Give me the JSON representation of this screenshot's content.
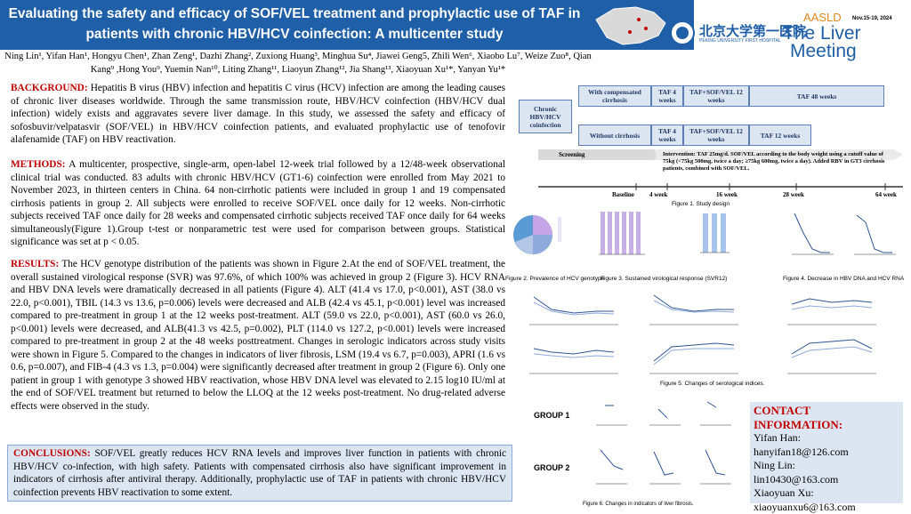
{
  "header": {
    "title": "Evaluating the safety and efficacy of SOF/VEL treatment and prophylactic use of TAF in patients with chronic HBV/HCV coinfection: A multicenter study",
    "authors": "Ning Lin¹, Yifan Han¹, Hongyu Chen¹, Zhan Zeng¹, Dazhi Zhang², Zuxiong Huang³, Minghua Su⁴, Jiawei Geng5, Zhili Wen⁶, Xiaobo Lu⁷, Weize Zuo⁸, Qian Kang⁹ ,Hong You⁹, Yuemin Nan¹⁰, Liting Zhang¹¹, Liaoyun Zhang¹², Jia Shang¹³, Xiaoyuan Xu¹*, Yanyan Yu¹*",
    "hospital_cn": "北京大学第一医院",
    "hospital_en": "PEKING UNIVERSITY FIRST HOSPITAL",
    "conference": "AASLD",
    "dates": "Nov.15-19, 2024",
    "meeting_line1": "The Liver",
    "meeting_line2": "Meeting"
  },
  "sections": {
    "background": {
      "heading": "BACKGROUND:",
      "text": "Hepatitis B virus (HBV) infection and hepatitis C virus (HCV) infection are among the leading causes of chronic liver diseases worldwide. Through the same transmission route, HBV/HCV coinfection (HBV/HCV dual infection) widely exists and aggravates severe liver damage. In this study, we assessed the safety and efficacy of sofosbuvir/velpatasvir (SOF/VEL) in HBV/HCV coinfection patients, and evaluated prophylactic use of tenofovir alafenamide (TAF) on HBV reactivation."
    },
    "methods": {
      "heading": "METHODS:",
      "text": "A multicenter, prospective, single-arm, open-label 12-week trial followed by a 12/48-week observational clinical trial was conducted. 83 adults with chronic HBV/HCV (GT1-6) coinfection were enrolled from May 2021 to November 2023, in thirteen centers in China. 64 non-cirrhotic patients were included in group 1 and 19 compensated cirrhosis patients in group 2. All subjects were enrolled to receive SOF/VEL once daily for 12 weeks. Non-cirrhotic subjects received TAF once daily for 28 weeks and compensated cirrhotic subjects received TAF once daily for 64 weeks simultaneously(Figure 1).Group t-test or nonparametric test were used for comparison between groups. Statistical significance was set at p < 0.05."
    },
    "results": {
      "heading": "RESULTS:",
      "text": "The HCV genotype distribution of the patients was shown in Figure 2.At the end of SOF/VEL treatment, the overall sustained virological response (SVR) was 97.6%, of which 100% was achieved in group 2 (Figure 3). HCV RNA and HBV DNA levels were dramatically decreased in all patients (Figure 4). ALT (41.4 vs 17.0, p<0.001), AST (38.0 vs 22.0, p<0.001), TBIL (14.3 vs 13.6, p=0.006) levels were decreased and ALB (42.4 vs 45.1, p<0.001) level was increased compared to pre-treatment in group 1 at the 12 weeks post-treatment. ALT (59.0 vs 22.0, p<0.001), AST (60.0 vs 26.0, p<0.001) levels were decreased, and ALB(41.3 vs 42.5, p=0.002), PLT (114.0 vs 127.2, p<0.001) levels were increased compared to pre-treatment in group 2 at the 48 weeks posttreatment. Changes in serologic indicators across study visits were shown in Figure 5. Compared to the changes in indicators of liver fibrosis, LSM (19.4 vs 6.7, p=0.003), APRI (1.6 vs 0.6, p=0.007), and FIB-4 (4.3 vs 1.3, p=0.004) were significantly decreased after treatment in group 2 (Figure 6). Only one patient in group 1 with genotype 3 showed HBV reactivation, whose HBV DNA level was elevated to 2.15 log10 IU/ml at the end of SOF/VEL treatment but returned to below the LLOQ at the 12 weeks post-treatment. No drug-related adverse effects were observed in the study."
    },
    "conclusions": {
      "heading": "CONCLUSIONS:",
      "text": "SOF/VEL greatly reduces HCV RNA levels and improves liver function in patients with chronic HBV/HCV co-infection, with high safety. Patients with compensated cirrhosis also have significant improvement in indicators of cirrhosis after antiviral therapy. Additionally, prophylactic use of TAF in patients with chronic HBV/HCV coinfection prevents HBV reactivation to some extent."
    }
  },
  "design": {
    "population": "Chronic HBV/HCV coinfection",
    "row1": [
      "With compensated cirrhosis",
      "TAF 4 weeks",
      "TAF+SOF/VEL 12 weeks",
      "TAF 48 weeks"
    ],
    "row2": [
      "Without cirrhosis",
      "TAF 4 weeks",
      "TAF+SOF/VEL 12 weeks",
      "TAF 12 weeks"
    ],
    "screening": "Screening",
    "intervention": "Intervention: TAF 25mg/d. SOF/VEL according to the body weight using a cutoff value of 75kg (<75kg 500mg, twice a day; ≥75kg 600mg, twice a day). Added RBV in GT3 cirrhosis patients, combined with SOF/VEL.",
    "timeline": [
      "Baseline",
      "4 week",
      "16 week",
      "28 week",
      "64 week"
    ],
    "caption": "Figure 1. Study design"
  },
  "figures": {
    "fig2": "Figure 2. Prevalence of HCV genotype",
    "fig3": "Figure 3. Sustained virological response (SVR12)",
    "fig4": "Figure 4. Decrease in HBV DNA and HCV RNA",
    "fig5": "Figure 5. Changes of serological indices.",
    "fig6": "Figure 6. Changes in indicators of liver fibrosis.",
    "group1": "GROUP 1",
    "group2": "GROUP 2"
  },
  "contact": {
    "heading": "CONTACT INFORMATION:",
    "lines": [
      "Yifan Han:",
      "hanyifan18@126.com",
      "Ning Lin:",
      "lin10430@163.com",
      "Xiaoyuan Xu:",
      "xiaoyuanxu6@163.com"
    ]
  }
}
